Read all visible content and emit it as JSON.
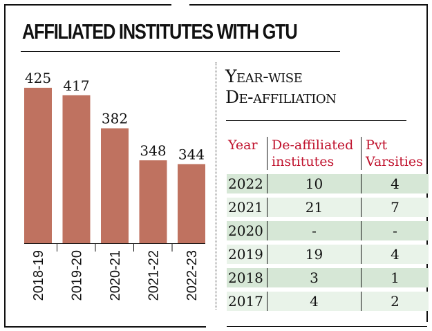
{
  "title": "AFFILIATED INSTITUTES WITH GTU",
  "chart_data": {
    "type": "bar",
    "categories": [
      "2018-19",
      "2019-20",
      "2020-21",
      "2021-22",
      "2022-23"
    ],
    "values": [
      425,
      417,
      382,
      348,
      344
    ],
    "title": "AFFILIATED INSTITUTES WITH GTU",
    "xlabel": "",
    "ylabel": "",
    "ylim": [
      260,
      425
    ],
    "bar_color": "#bf7260",
    "grid": false
  },
  "table": {
    "title_line1": "Year-wise",
    "title_line2": "De-affiliation",
    "headers": [
      "Year",
      "De-affiliated institutes",
      "Pvt Varsities"
    ],
    "header_color": "#c0132e",
    "rows": [
      [
        "2022",
        "10",
        "4"
      ],
      [
        "2021",
        "21",
        "7"
      ],
      [
        "2020",
        "-",
        "-"
      ],
      [
        "2019",
        "19",
        "4"
      ],
      [
        "2018",
        "3",
        "1"
      ],
      [
        "2017",
        "4",
        "2"
      ]
    ]
  }
}
